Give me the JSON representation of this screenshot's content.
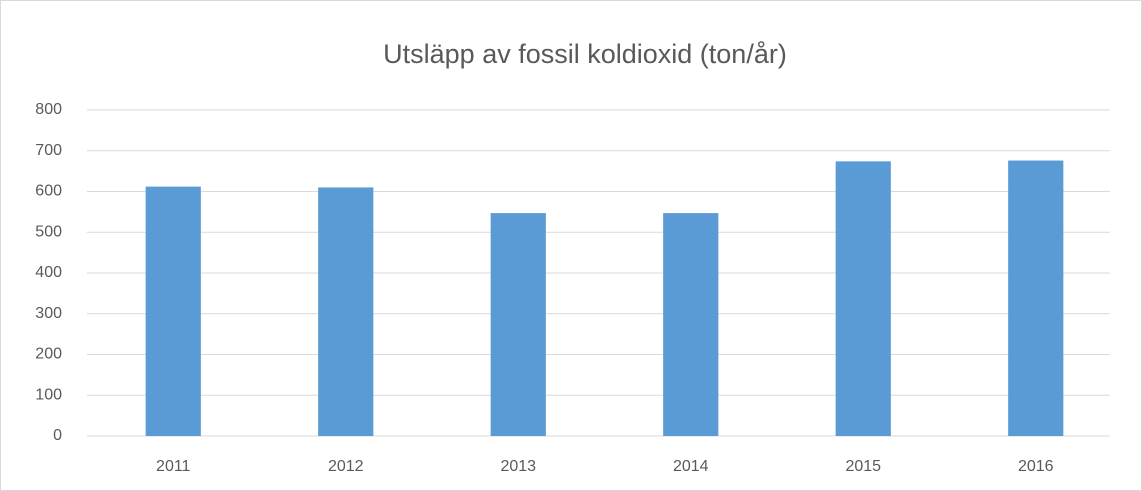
{
  "chart_data": {
    "type": "bar",
    "title": "Utsläpp av fossil koldioxid (ton/år)",
    "categories": [
      "2011",
      "2012",
      "2013",
      "2014",
      "2015",
      "2016"
    ],
    "values": [
      612,
      610,
      547,
      547,
      674,
      676
    ],
    "color": "#5b9bd5",
    "ylim": [
      0,
      800
    ],
    "yticks": [
      0,
      100,
      200,
      300,
      400,
      500,
      600,
      700,
      800
    ],
    "grid": true
  }
}
